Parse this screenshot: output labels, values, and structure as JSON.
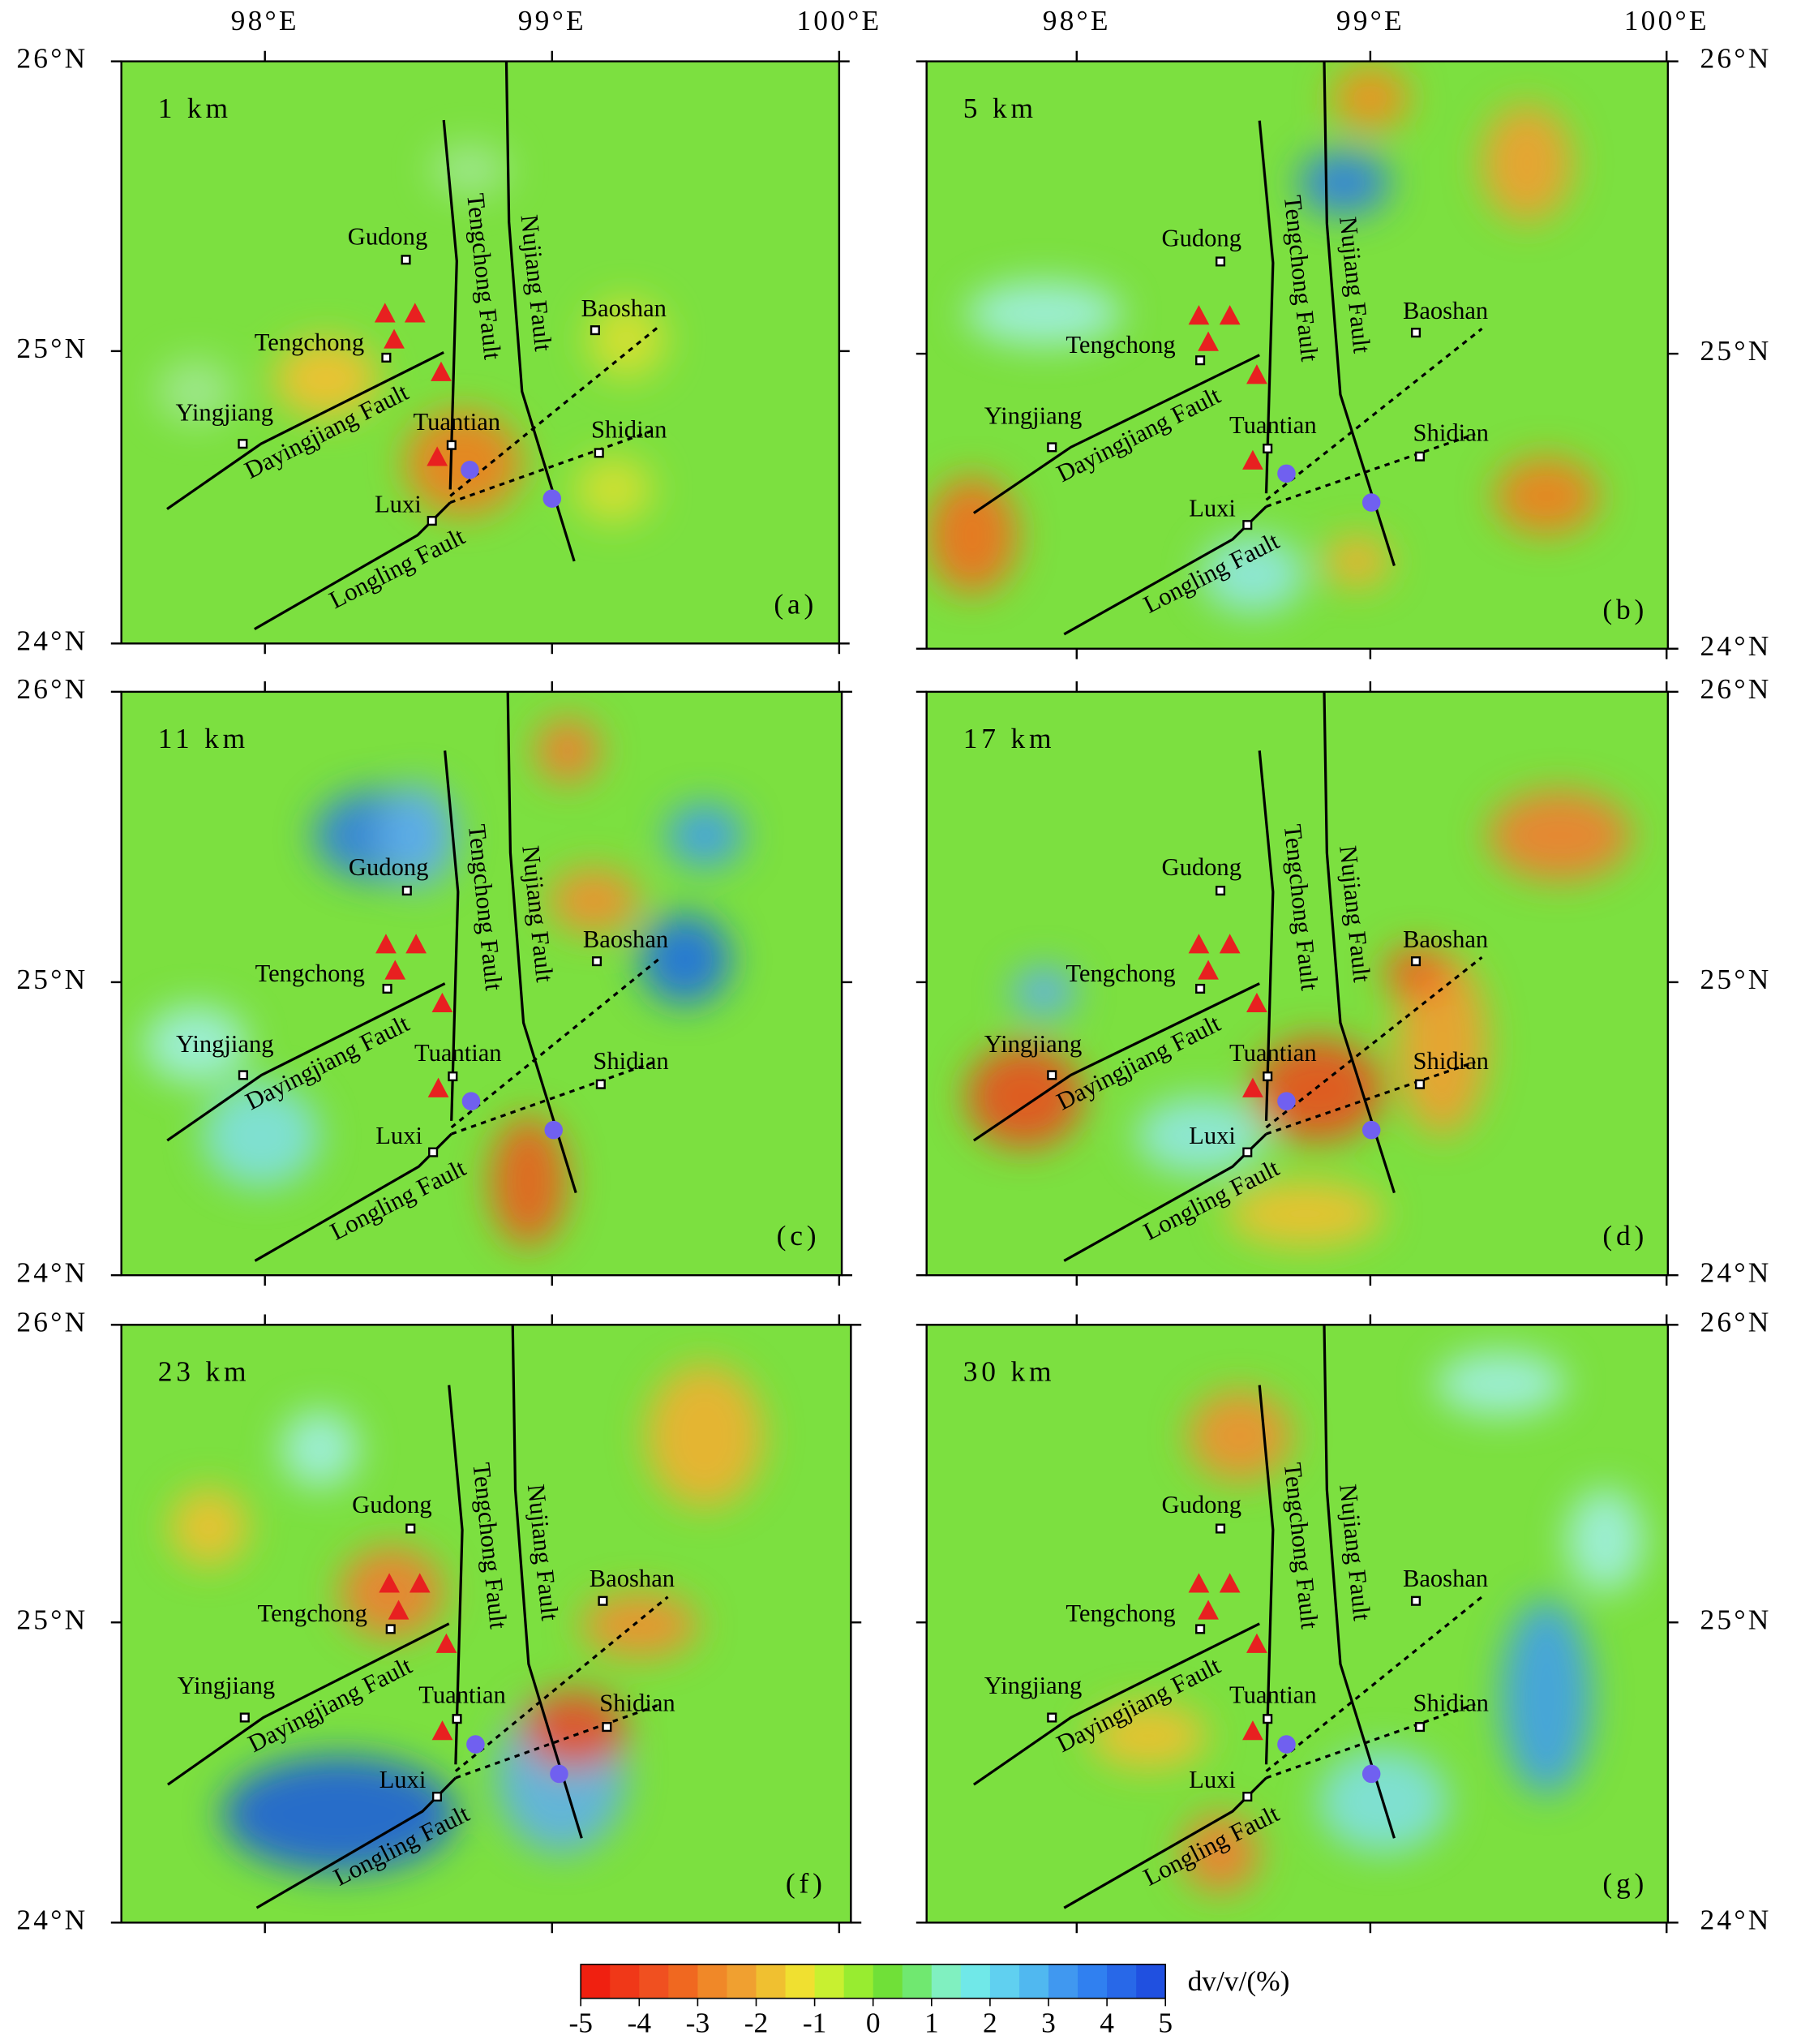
{
  "panels": [
    {
      "depth": "1 km",
      "label": "(a)"
    },
    {
      "depth": "5 km",
      "label": "(b)"
    },
    {
      "depth": "11 km",
      "label": "(c)"
    },
    {
      "depth": "17 km",
      "label": "(d)"
    },
    {
      "depth": "23 km",
      "label": "(f)"
    },
    {
      "depth": "30 km",
      "label": "(g)"
    }
  ],
  "axes": {
    "lon_ticks": [
      "98°E",
      "99°E",
      "100°E"
    ],
    "lat_ticks": [
      "26°N",
      "25°N",
      "24°N"
    ]
  },
  "places": [
    "Gudong",
    "Tengchong",
    "Yingjiang",
    "Tuantian",
    "Luxi",
    "Baoshan",
    "Shidian"
  ],
  "faults": [
    "Tengchong Fault",
    "Nujiang Fault",
    "Dayingjiang Fault",
    "Longling Fault"
  ],
  "colorbar": {
    "label": "dv/v/(%)",
    "ticks": [
      "-5",
      "-4",
      "-3",
      "-2",
      "-1",
      "0",
      "1",
      "2",
      "3",
      "4",
      "5"
    ]
  }
}
